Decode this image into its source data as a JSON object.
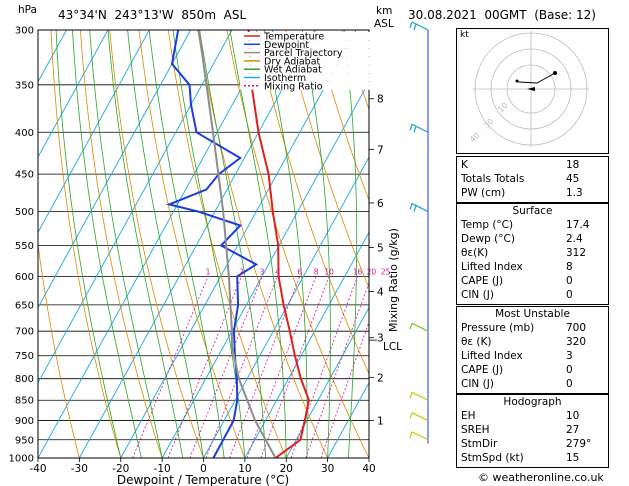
{
  "header": {
    "hpa_label": "hPa",
    "location": "43°34'N  243°13'W  850m  ASL",
    "km_label": "km",
    "asl_label": "ASL",
    "datetime": "30.08.2021  00GMT  (Base: 12)"
  },
  "chart_data": {
    "type": "skew-t",
    "xlabel": "Dewpoint / Temperature (°C)",
    "ylabel_right": "Mixing Ratio (g/kg)",
    "x_ticks": [
      -40,
      -30,
      -20,
      -10,
      0,
      10,
      20,
      30,
      40
    ],
    "pressure_levels": [
      300,
      350,
      400,
      450,
      500,
      550,
      600,
      650,
      700,
      750,
      800,
      850,
      900,
      950,
      1000
    ],
    "xlim": [
      -40,
      40
    ],
    "plim": [
      1000,
      300
    ],
    "km_ticks": [
      {
        "km": "8",
        "p": 364
      },
      {
        "km": "7",
        "p": 420
      },
      {
        "km": "6",
        "p": 488
      },
      {
        "km": "5",
        "p": 553
      },
      {
        "km": "4",
        "p": 626
      },
      {
        "km": "3",
        "p": 713
      },
      {
        "km": "2",
        "p": 797
      },
      {
        "km": "1",
        "p": 900
      }
    ],
    "lcl_label": "LCL",
    "lcl_p": 730,
    "mixing_ratio_labels": [
      "1",
      "2",
      "3",
      "4",
      "6",
      "8",
      "10",
      "16",
      "20",
      "25"
    ],
    "legend": [
      {
        "name": "Temperature",
        "color": "#e0201b"
      },
      {
        "name": "Dewpoint",
        "color": "#1b3de0"
      },
      {
        "name": "Parcel Trajectory",
        "color": "#8c8c8c"
      },
      {
        "name": "Dry Adiabat",
        "color": "#d98b00"
      },
      {
        "name": "Wet Adiabat",
        "color": "#2aa52a"
      },
      {
        "name": "Isotherm",
        "color": "#18a8e0"
      },
      {
        "name": "Mixing Ratio",
        "color": "#d6139c"
      }
    ],
    "series": [
      {
        "name": "Temperature",
        "color": "#e0201b",
        "points": [
          [
            1000,
            17.4
          ],
          [
            950,
            21
          ],
          [
            900,
            19.5
          ],
          [
            850,
            17.8
          ],
          [
            800,
            13
          ],
          [
            750,
            8.5
          ],
          [
            700,
            4
          ],
          [
            650,
            -1
          ],
          [
            600,
            -6
          ],
          [
            550,
            -10.2
          ],
          [
            500,
            -16
          ],
          [
            450,
            -22
          ],
          [
            400,
            -30
          ],
          [
            350,
            -38
          ],
          [
            300,
            -46
          ]
        ]
      },
      {
        "name": "Dewpoint",
        "color": "#1b3de0",
        "points": [
          [
            1000,
            2.4
          ],
          [
            900,
            2.3
          ],
          [
            850,
            0.5
          ],
          [
            800,
            -2.5
          ],
          [
            750,
            -6
          ],
          [
            700,
            -9.5
          ],
          [
            650,
            -12
          ],
          [
            600,
            -16
          ],
          [
            580,
            -13
          ],
          [
            550,
            -24
          ],
          [
            520,
            -22
          ],
          [
            500,
            -34
          ],
          [
            490,
            -42
          ],
          [
            470,
            -35
          ],
          [
            450,
            -34
          ],
          [
            430,
            -31
          ],
          [
            400,
            -45
          ],
          [
            370,
            -50
          ],
          [
            350,
            -53
          ],
          [
            330,
            -60
          ],
          [
            300,
            -63
          ]
        ]
      },
      {
        "name": "Parcel Trajectory",
        "color": "#8c8c8c",
        "points": [
          [
            1000,
            17.4
          ],
          [
            900,
            7.5
          ],
          [
            800,
            -2
          ],
          [
            730,
            -8
          ],
          [
            700,
            -10
          ],
          [
            600,
            -18
          ],
          [
            500,
            -28
          ],
          [
            400,
            -41
          ],
          [
            300,
            -58
          ]
        ]
      }
    ],
    "wind_barbs": [
      300,
      400,
      500,
      700,
      850,
      900,
      950
    ]
  },
  "indices": {
    "rows": [
      {
        "label": "K",
        "value": "18"
      },
      {
        "label": "Totals Totals",
        "value": "45"
      },
      {
        "label": "PW (cm)",
        "value": "1.3"
      }
    ]
  },
  "surface": {
    "title": "Surface",
    "rows": [
      {
        "label": "Temp (°C)",
        "value": "17.4"
      },
      {
        "label": "Dewp (°C)",
        "value": "2.4"
      },
      {
        "label": "θε(K)",
        "value": "312"
      },
      {
        "label": "Lifted Index",
        "value": "8"
      },
      {
        "label": "CAPE (J)",
        "value": "0"
      },
      {
        "label": "CIN (J)",
        "value": "0"
      }
    ]
  },
  "most_unstable": {
    "title": "Most Unstable",
    "rows": [
      {
        "label": "Pressure (mb)",
        "value": "700"
      },
      {
        "label": "θε (K)",
        "value": "320"
      },
      {
        "label": "Lifted Index",
        "value": "3"
      },
      {
        "label": "CAPE (J)",
        "value": "0"
      },
      {
        "label": "CIN (J)",
        "value": "0"
      }
    ]
  },
  "hodograph": {
    "title": "Hodograph",
    "label": "kt",
    "rows": [
      {
        "label": "EH",
        "value": "10"
      },
      {
        "label": "SREH",
        "value": "27"
      },
      {
        "label": "StmDir",
        "value": "279°"
      },
      {
        "label": "StmSpd (kt)",
        "value": "15"
      }
    ]
  },
  "footer": {
    "copyright": "© weatheronline.co.uk"
  }
}
